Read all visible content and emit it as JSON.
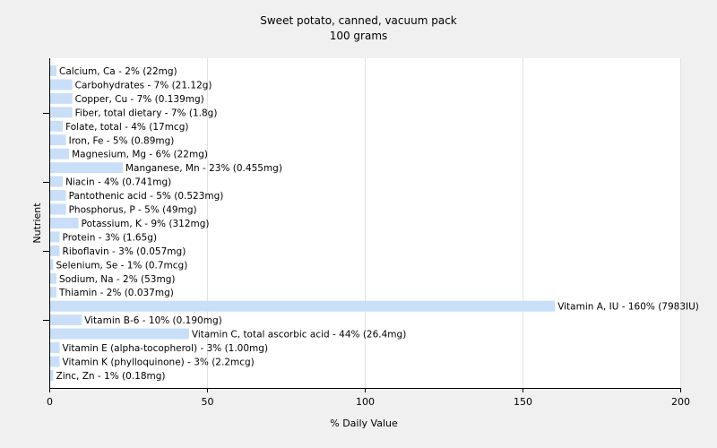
{
  "chart_data": {
    "type": "bar",
    "orientation": "horizontal",
    "title": "Sweet potato, canned, vacuum pack",
    "subtitle": "100 grams",
    "xlabel": "% Daily Value",
    "ylabel": "Nutrient",
    "xlim": [
      0,
      200
    ],
    "xticks": [
      0,
      50,
      100,
      150,
      200
    ],
    "grid": true,
    "bar_color": "#c9dff8",
    "categories": [
      "Calcium, Ca",
      "Carbohydrates",
      "Copper, Cu",
      "Fiber, total dietary",
      "Folate, total",
      "Iron, Fe",
      "Magnesium, Mg",
      "Manganese, Mn",
      "Niacin",
      "Pantothenic acid",
      "Phosphorus, P",
      "Potassium, K",
      "Protein",
      "Riboflavin",
      "Selenium, Se",
      "Sodium, Na",
      "Thiamin",
      "Vitamin A, IU",
      "Vitamin B-6",
      "Vitamin C, total ascorbic acid",
      "Vitamin E (alpha-tocopherol)",
      "Vitamin K (phylloquinone)",
      "Zinc, Zn"
    ],
    "values": [
      2,
      7,
      7,
      7,
      4,
      5,
      6,
      23,
      4,
      5,
      5,
      9,
      3,
      3,
      1,
      2,
      2,
      160,
      10,
      44,
      3,
      3,
      1
    ],
    "labels": [
      "Calcium, Ca - 2% (22mg)",
      "Carbohydrates - 7% (21.12g)",
      "Copper, Cu - 7% (0.139mg)",
      "Fiber, total dietary - 7% (1.8g)",
      "Folate, total - 4% (17mcg)",
      "Iron, Fe - 5% (0.89mg)",
      "Magnesium, Mg - 6% (22mg)",
      "Manganese, Mn - 23% (0.455mg)",
      "Niacin - 4% (0.741mg)",
      "Pantothenic acid - 5% (0.523mg)",
      "Phosphorus, P - 5% (49mg)",
      "Potassium, K - 9% (312mg)",
      "Protein - 3% (1.65g)",
      "Riboflavin - 3% (0.057mg)",
      "Selenium, Se - 1% (0.7mcg)",
      "Sodium, Na - 2% (53mg)",
      "Thiamin - 2% (0.037mg)",
      "Vitamin A, IU - 160% (7983IU)",
      "Vitamin B-6 - 10% (0.190mg)",
      "Vitamin C, total ascorbic acid - 44% (26.4mg)",
      "Vitamin E (alpha-tocopherol) - 3% (1.00mg)",
      "Vitamin K (phylloquinone) - 3% (2.2mcg)",
      "Zinc, Zn - 1% (0.18mg)"
    ]
  }
}
